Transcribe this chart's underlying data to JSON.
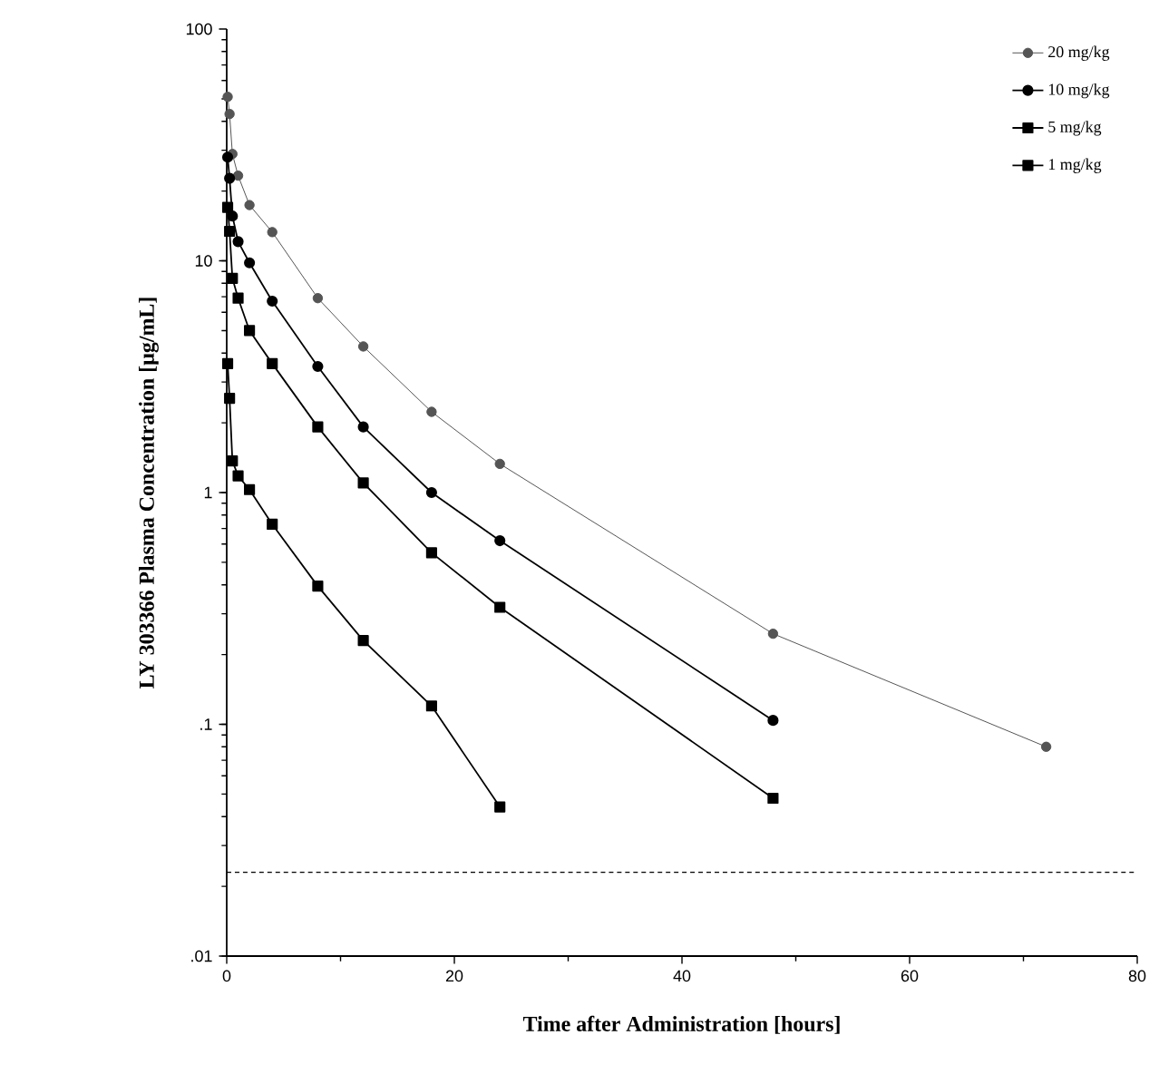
{
  "chart_data": {
    "type": "line",
    "xlabel": "Time after Administration [hours]",
    "ylabel": "LY 303366 Plasma Concentration [µg/mL]",
    "log": "y",
    "legend": "top right",
    "grid": false,
    "line_style": "solid",
    "xlim": [
      0,
      80
    ],
    "xticks": [
      0,
      20,
      40,
      60,
      80
    ],
    "ylim": [
      0.01,
      100
    ],
    "yticks": [
      {
        "value": 0.01,
        "label": ".01"
      },
      {
        "value": 0.1,
        "label": ".1"
      },
      1,
      10,
      100
    ],
    "ref_lines": [
      {
        "axis": "y",
        "value": 0.023,
        "line_style": "dashed",
        "color": "#000000"
      }
    ],
    "series": [
      {
        "name": "20 mg/kg",
        "color": "#555555",
        "marker": "circle",
        "x": [
          0.083,
          0.25,
          0.5,
          1,
          2,
          4,
          8,
          12,
          18,
          24,
          48,
          72
        ],
        "values": [
          51,
          43,
          28.9,
          23.3,
          17.4,
          13.3,
          6.9,
          4.27,
          2.23,
          1.33,
          0.246,
          0.08
        ]
      },
      {
        "name": "10 mg/kg",
        "color": "#000000",
        "marker": "circle",
        "x": [
          0.083,
          0.25,
          0.5,
          1,
          2,
          4,
          8,
          12,
          18,
          24,
          48
        ],
        "values": [
          28,
          22.7,
          15.6,
          12.1,
          9.8,
          6.7,
          3.5,
          1.92,
          1.0,
          0.62,
          0.104
        ]
      },
      {
        "name": "5 mg/kg",
        "color": "#000000",
        "marker": "square",
        "x": [
          0.083,
          0.25,
          0.5,
          1,
          2,
          4,
          8,
          12,
          18,
          24,
          48
        ],
        "values": [
          17,
          13.4,
          8.4,
          6.9,
          5.0,
          3.6,
          1.92,
          1.1,
          0.55,
          0.32,
          0.048
        ]
      },
      {
        "name": "1 mg/kg",
        "color": "#000000",
        "marker": "square",
        "x": [
          0.083,
          0.25,
          0.5,
          1,
          2,
          4,
          8,
          12,
          18,
          24
        ],
        "values": [
          3.6,
          2.55,
          1.37,
          1.18,
          1.03,
          0.73,
          0.395,
          0.23,
          0.12,
          0.044
        ]
      }
    ]
  }
}
